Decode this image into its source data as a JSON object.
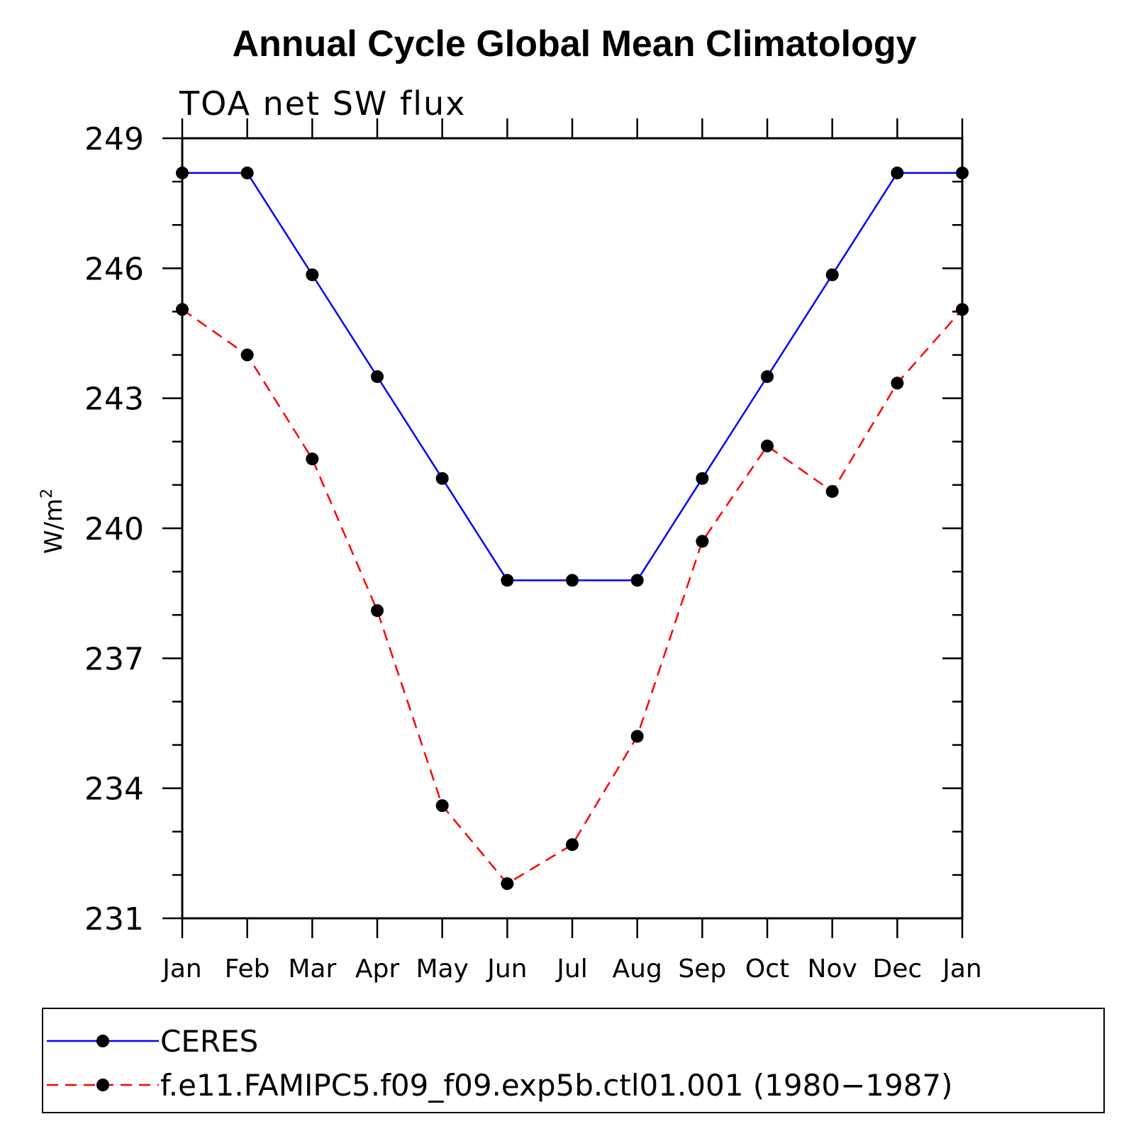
{
  "chart_data": {
    "type": "line",
    "title": "Annual Cycle Global Mean Climatology",
    "subtitle": "TOA net SW flux",
    "ylabel": "W/m",
    "ylabel_superscript": "2",
    "xlabel": "",
    "categories": [
      "Jan",
      "Feb",
      "Mar",
      "Apr",
      "May",
      "Jun",
      "Jul",
      "Aug",
      "Sep",
      "Oct",
      "Nov",
      "Dec",
      "Jan"
    ],
    "ylim": [
      231,
      249
    ],
    "yticks": [
      "231",
      "234",
      "237",
      "240",
      "243",
      "246",
      "249"
    ],
    "series": [
      {
        "name": "CERES",
        "color": "#0000ff",
        "dash": "solid",
        "values": [
          248.2,
          248.2,
          245.85,
          243.5,
          241.15,
          238.8,
          238.8,
          238.8,
          241.15,
          243.5,
          245.85,
          248.2,
          248.2
        ]
      },
      {
        "name": "f.e11.FAMIPC5.f09_f09.exp5b.ctl01.001 (1980−1987)",
        "color": "#ff0000",
        "dash": "dashed",
        "values": [
          245.05,
          244.0,
          241.6,
          238.1,
          233.6,
          231.8,
          232.7,
          235.2,
          239.7,
          241.9,
          240.85,
          243.35,
          245.05
        ]
      }
    ],
    "legend_position": "bottom"
  }
}
